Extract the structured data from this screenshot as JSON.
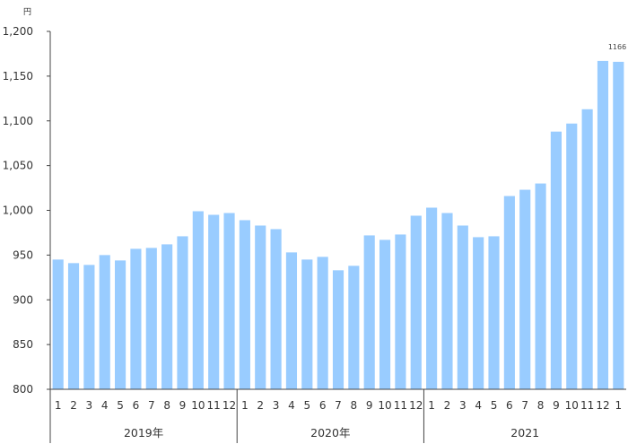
{
  "chart_data": {
    "type": "bar",
    "unit_label": "円",
    "y_tick_labels": [
      "800",
      "850",
      "900",
      "950",
      "1,000",
      "1,050",
      "1,100",
      "1,150",
      "1,200"
    ],
    "ylim": [
      800,
      1200
    ],
    "grid": false,
    "bar_color": "#99CCFF",
    "categories": [
      "1",
      "2",
      "3",
      "4",
      "5",
      "6",
      "7",
      "8",
      "9",
      "10",
      "11",
      "12",
      "1",
      "2",
      "3",
      "4",
      "5",
      "6",
      "7",
      "8",
      "9",
      "10",
      "11",
      "12",
      "1",
      "2",
      "3",
      "4",
      "5",
      "6",
      "7",
      "8",
      "9",
      "10",
      "11",
      "12",
      "1"
    ],
    "groups": [
      {
        "label": "2019年",
        "count": 12
      },
      {
        "label": "2020年",
        "count": 12
      },
      {
        "label": "2021",
        "count": 13
      }
    ],
    "values": [
      945,
      941,
      939,
      950,
      944,
      957,
      958,
      962,
      971,
      999,
      995,
      997,
      989,
      983,
      979,
      953,
      945,
      948,
      933,
      938,
      972,
      967,
      973,
      994,
      1003,
      997,
      983,
      970,
      971,
      1016,
      1023,
      1030,
      1088,
      1097,
      1113,
      1167,
      1166
    ],
    "data_labels": [
      {
        "index": 36,
        "text": "1166"
      }
    ]
  }
}
